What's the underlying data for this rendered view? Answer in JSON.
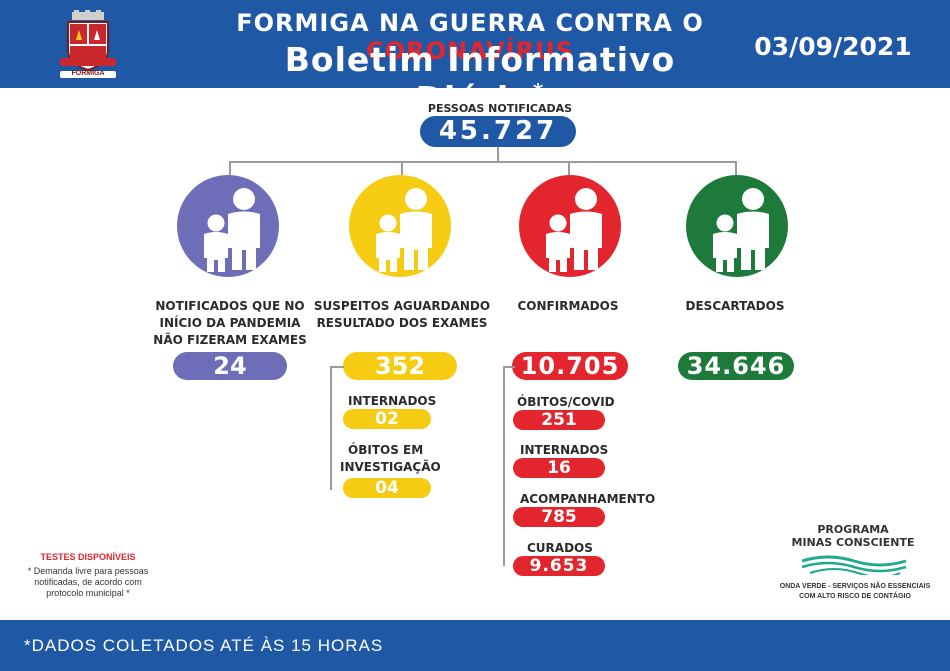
{
  "header": {
    "title_prefix": "FORMIGA NA GUERRA CONTRA O ",
    "title_highlight": "CORONAVÍRUS",
    "subtitle": "Boletim Informativo Diário",
    "subtitle_mark": "*",
    "date": "03/09/2021",
    "crest_text": "FORMIGA"
  },
  "total": {
    "label": "PESSOAS NOTIFICADAS",
    "value": "45.727"
  },
  "categories": [
    {
      "label_lines": [
        "NOTIFICADOS QUE NO",
        "INÍCIO DA PANDEMIA",
        "NÃO FIZERAM EXAMES"
      ],
      "value": "24",
      "color": "#6e6db7"
    },
    {
      "label_lines": [
        "SUSPEITOS AGUARDANDO",
        "RESULTADO DOS EXAMES"
      ],
      "value": "352",
      "color": "#f6cc13"
    },
    {
      "label_lines": [
        "CONFIRMADOS"
      ],
      "value": "10.705",
      "color": "#e3262d"
    },
    {
      "label_lines": [
        "DESCARTADOS"
      ],
      "value": "34.646",
      "color": "#1d7a3b"
    }
  ],
  "suspects_detail": [
    {
      "label_lines": [
        "INTERNADOS"
      ],
      "value": "02"
    },
    {
      "label_lines": [
        "ÓBITOS EM",
        "INVESTIGAÇÃO"
      ],
      "value": "04"
    }
  ],
  "confirmed_detail": [
    {
      "label": "ÓBITOS/COVID",
      "value": "251"
    },
    {
      "label": "INTERNADOS",
      "value": "16"
    },
    {
      "label": "ACOMPANHAMENTO",
      "value": "785"
    },
    {
      "label": "CURADOS",
      "value": "9.653"
    }
  ],
  "tests": {
    "title": "TESTES DISPONÍVEIS",
    "note_lines": [
      "* Demanda livre para pessoas",
      "notificadas, de acordo com",
      "protocolo municipal *"
    ]
  },
  "program": {
    "title_lines": [
      "PROGRAMA",
      "MINAS CONSCIENTE"
    ],
    "wave_lines": [
      "ONDA VERDE - SERVIÇOS NÃO ESSENCIAIS",
      "COM ALTO RISCO DE CONTÁGIO"
    ]
  },
  "footer": {
    "text": "*DADOS COLETADOS ATÉ ÀS 15 HORAS"
  },
  "colors": {
    "brand_blue": "#1f58a5",
    "purple": "#6e6db7",
    "yellow": "#f6cc13",
    "red": "#e3262d",
    "green": "#1d7a3b"
  }
}
